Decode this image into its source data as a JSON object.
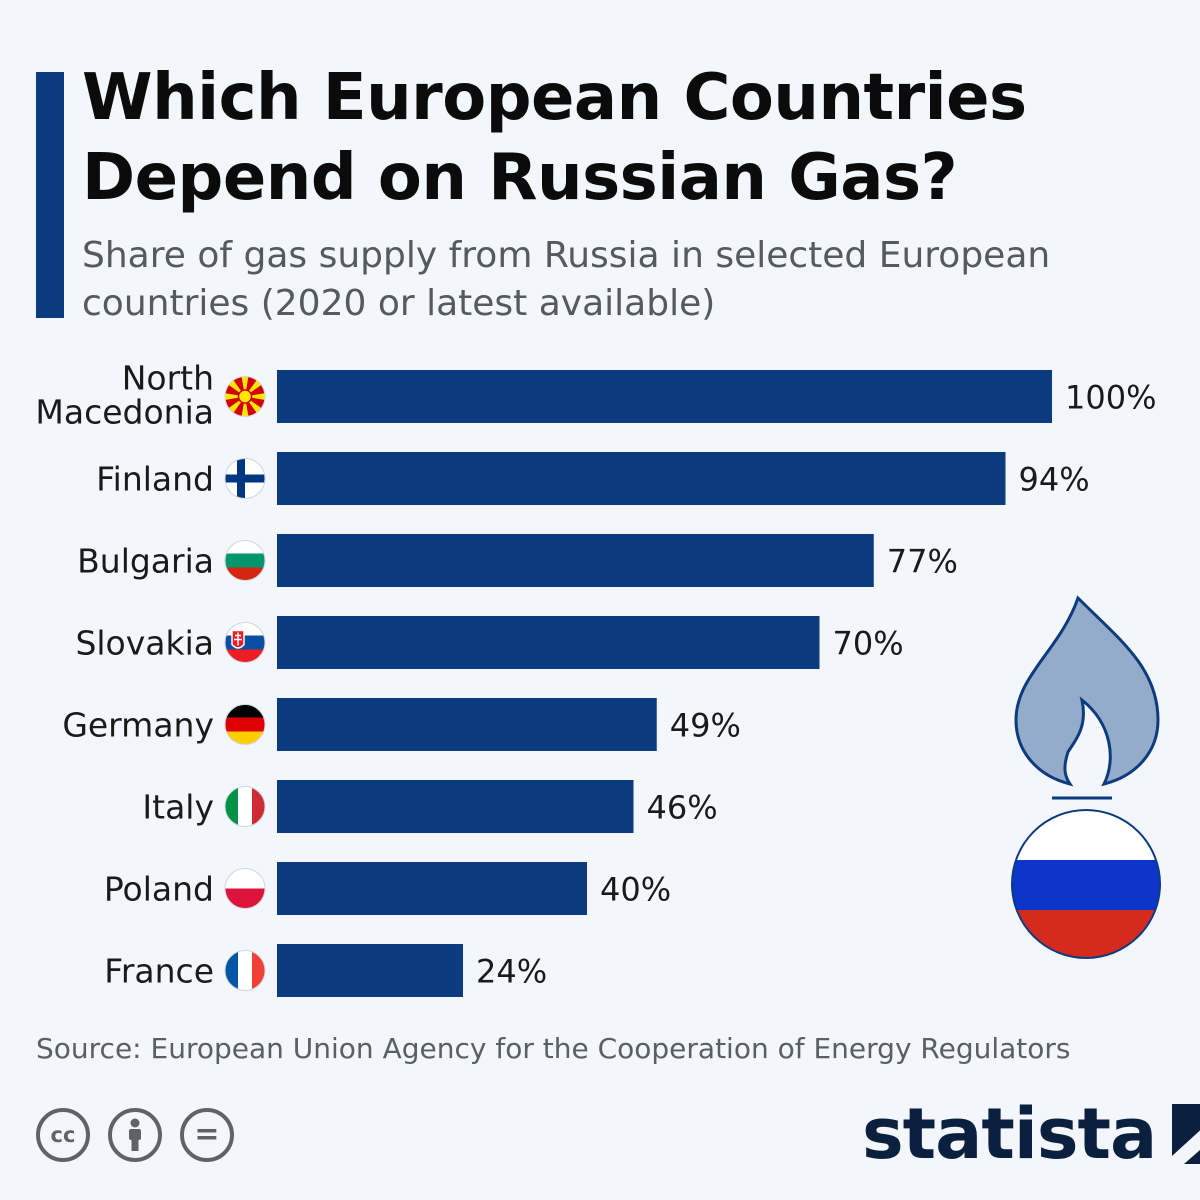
{
  "header": {
    "title": "Which European Countries Depend on Russian Gas?",
    "subtitle": "Share of gas supply from Russia in selected European countries (2020 or latest available)"
  },
  "chart_data": {
    "type": "bar",
    "orientation": "horizontal",
    "categories": [
      "North Macedonia",
      "Finland",
      "Bulgaria",
      "Slovakia",
      "Germany",
      "Italy",
      "Poland",
      "France"
    ],
    "values": [
      100,
      94,
      77,
      70,
      49,
      46,
      40,
      24
    ],
    "value_labels": [
      "100%",
      "94%",
      "77%",
      "70%",
      "49%",
      "46%",
      "40%",
      "24%"
    ],
    "flags": [
      "north-macedonia-flag-icon",
      "finland-flag-icon",
      "bulgaria-flag-icon",
      "slovakia-flag-icon",
      "germany-flag-icon",
      "italy-flag-icon",
      "poland-flag-icon",
      "france-flag-icon"
    ],
    "xlim": [
      0,
      100
    ],
    "unit": "%",
    "bar_color": "#0d3b80",
    "grid": false,
    "legend": "none"
  },
  "illustration": {
    "flame_icon": "gas-flame-icon",
    "flag_icon": "russia-flag-icon"
  },
  "footer": {
    "source": "Source: European Union Agency for the Cooperation of Energy Regulators",
    "license_icons": [
      "cc-icon",
      "attribution-icon",
      "no-derivatives-icon"
    ],
    "cc_text": "cc",
    "nd_text": "=",
    "brand": "statista"
  }
}
